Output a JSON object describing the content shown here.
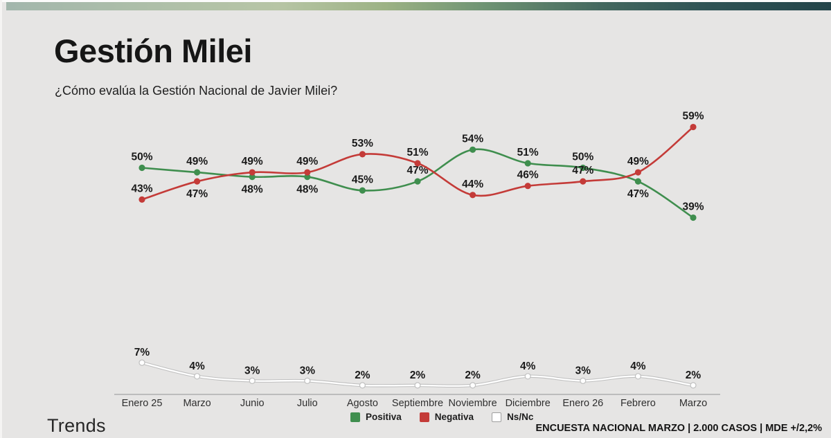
{
  "page": {
    "title": "Gestión Milei",
    "subtitle": "¿Cómo evalúa la Gestión Nacional de Javier Milei?",
    "brand": "Trends",
    "footnote": "ENCUESTA NACIONAL MARZO | 2.000 CASOS | MDE +/2,2%"
  },
  "colors": {
    "background": "#e6e5e4",
    "axis": "#aeaeae",
    "value_label": "#191919",
    "topbar_left": "#a2b6ac",
    "topbar_right": "#234449"
  },
  "chart_data": {
    "type": "line",
    "title": "Gestión Milei",
    "subtitle": "¿Cómo evalúa la Gestión Nacional de Javier Milei?",
    "categories": [
      "Enero 25",
      "Marzo",
      "Junio",
      "Julio",
      "Agosto",
      "Septiembre",
      "Noviembre",
      "Diciembre",
      "Enero 26",
      "Febrero",
      "Marzo"
    ],
    "value_suffix": "%",
    "ylim": [
      0,
      65
    ],
    "grid": false,
    "legend_position": "bottom",
    "series": [
      {
        "name": "Positiva",
        "color": "#3f8e4e",
        "values": [
          50,
          49,
          48,
          48,
          45,
          47,
          54,
          51,
          50,
          47,
          39
        ],
        "label_pos": [
          "above",
          "above",
          "below",
          "below",
          "above",
          "above",
          "above",
          "above",
          "above",
          "below",
          "above"
        ]
      },
      {
        "name": "Negativa",
        "color": "#c43b38",
        "values": [
          43,
          47,
          49,
          49,
          53,
          51,
          44,
          46,
          47,
          49,
          59
        ],
        "label_pos": [
          "above",
          "below",
          "above",
          "above",
          "above",
          "above",
          "above",
          "above",
          "above",
          "above",
          "above"
        ]
      },
      {
        "name": "Ns/Nc",
        "color": "#ffffff",
        "edge_color": "#bfbfbf",
        "values": [
          7,
          4,
          3,
          3,
          2,
          2,
          2,
          4,
          3,
          4,
          2
        ],
        "label_pos": [
          "above",
          "above",
          "above",
          "above",
          "above",
          "above",
          "above",
          "above",
          "above",
          "above",
          "above"
        ]
      }
    ]
  }
}
